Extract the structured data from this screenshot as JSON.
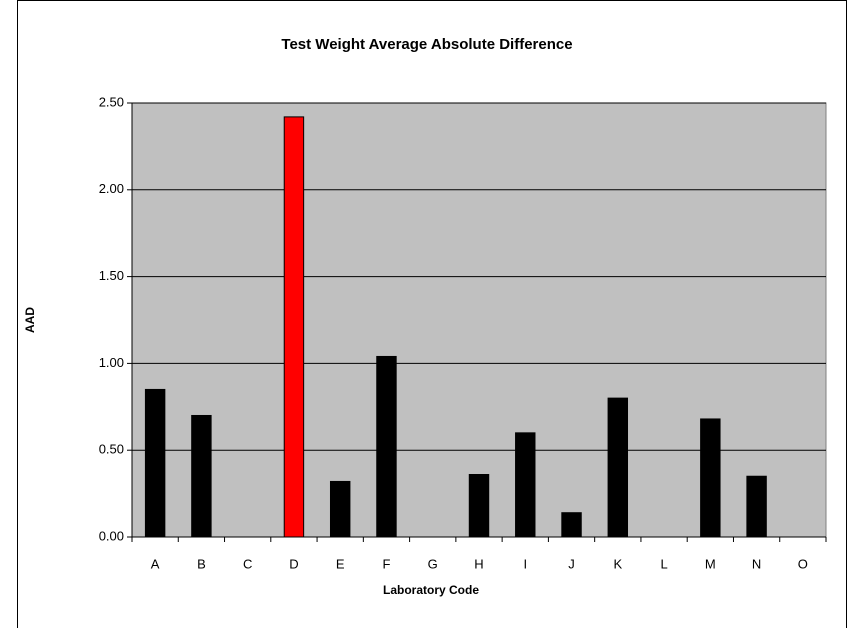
{
  "chart_data": {
    "type": "bar",
    "title": "Test Weight Average Absolute Difference",
    "x_label": "Laboratory Code",
    "y_label": "AAD",
    "categories": [
      "A",
      "B",
      "C",
      "D",
      "E",
      "F",
      "G",
      "H",
      "I",
      "J",
      "K",
      "L",
      "M",
      "N",
      "O"
    ],
    "values": [
      0.85,
      0.7,
      null,
      2.42,
      0.32,
      1.04,
      null,
      0.36,
      0.6,
      0.14,
      0.8,
      null,
      0.68,
      0.35,
      null
    ],
    "colors": [
      "#000000",
      "#000000",
      "#000000",
      "#ff0000",
      "#000000",
      "#000000",
      "#000000",
      "#000000",
      "#000000",
      "#000000",
      "#000000",
      "#000000",
      "#000000",
      "#000000",
      "#000000"
    ],
    "ylim": [
      0,
      2.5
    ],
    "yticks": [
      {
        "value": 0,
        "label": "0.00"
      },
      {
        "value": 0.5,
        "label": "0.50"
      },
      {
        "value": 1,
        "label": "1.00"
      },
      {
        "value": 1.5,
        "label": "1.50"
      },
      {
        "value": 2,
        "label": "2.00"
      },
      {
        "value": 2.5,
        "label": "2.50"
      }
    ],
    "grid": true,
    "plot_background": "#c0c0c0"
  }
}
